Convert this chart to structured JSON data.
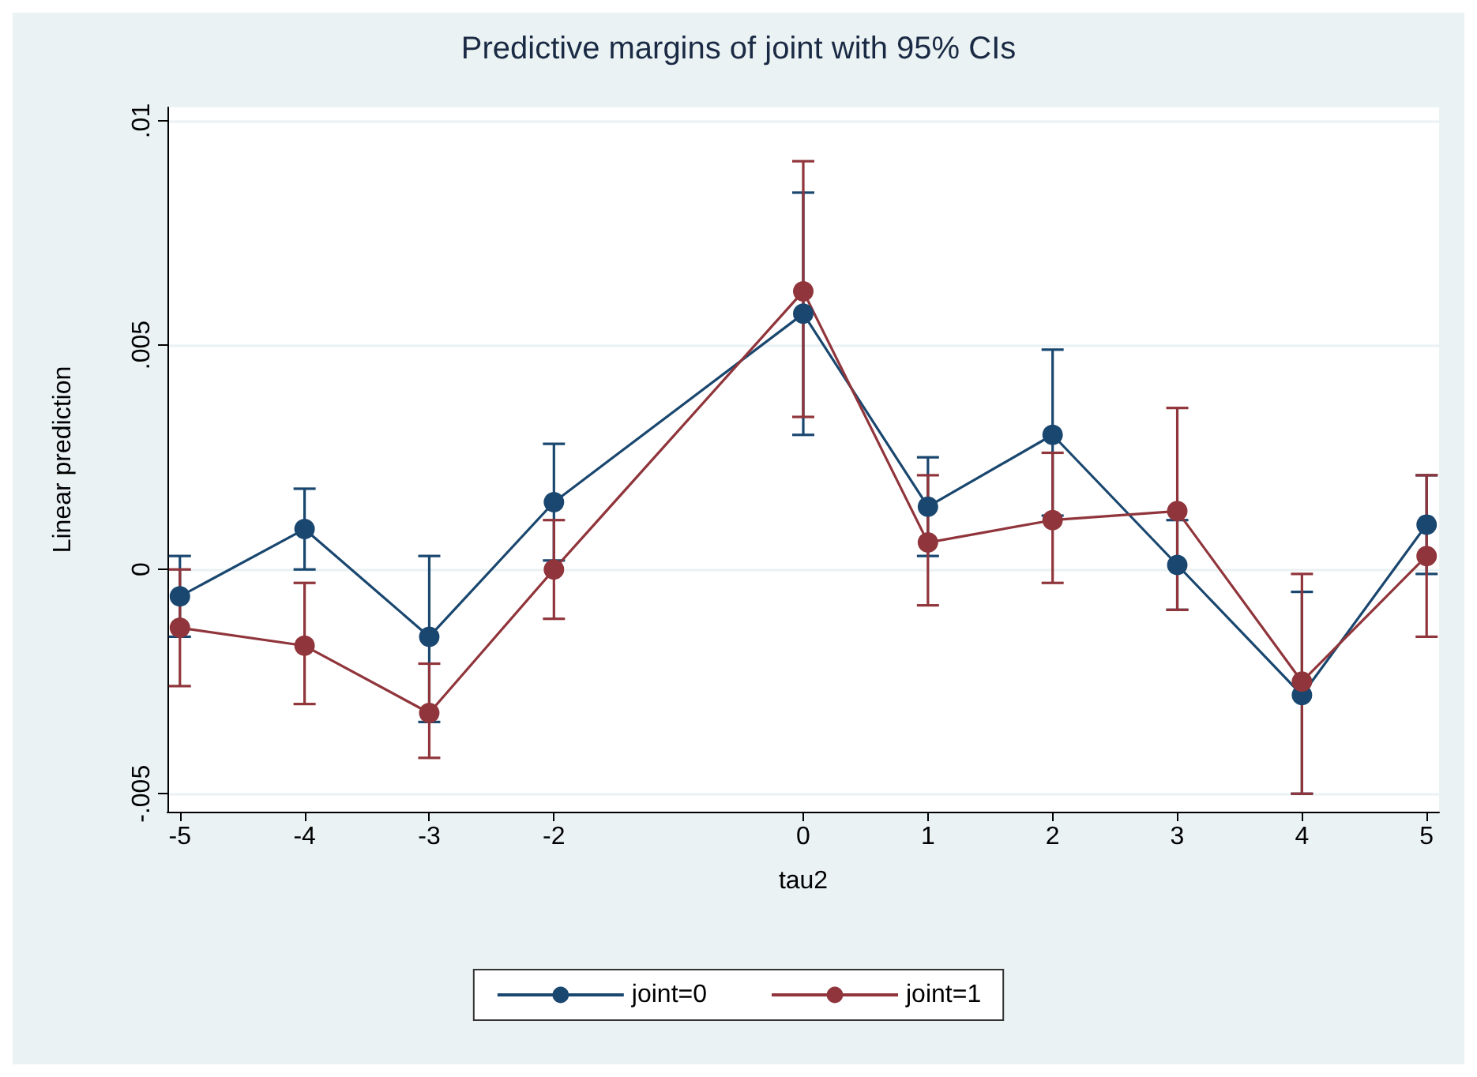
{
  "chart_data": {
    "type": "line",
    "title": "Predictive margins of joint with 95% CIs",
    "xlabel": "tau2",
    "ylabel": "Linear prediction",
    "x": [
      -5,
      -4,
      -3,
      -2,
      0,
      1,
      2,
      3,
      4,
      5
    ],
    "series": [
      {
        "name": "joint=0",
        "color": "#1a476f",
        "values": [
          -0.0006,
          0.0009,
          -0.0015,
          0.0015,
          0.0057,
          0.0014,
          0.003,
          0.0001,
          -0.0028,
          0.001
        ],
        "errors": [
          [
            -0.0015,
            0.0003
          ],
          [
            0.0,
            0.0018
          ],
          [
            -0.0034,
            0.0003
          ],
          [
            0.0002,
            0.0028
          ],
          [
            0.003,
            0.0084
          ],
          [
            0.0003,
            0.0025
          ],
          [
            0.0012,
            0.0049
          ],
          [
            -0.0009,
            0.0011
          ],
          [
            -0.005,
            -0.0005
          ],
          [
            -0.0001,
            0.0021
          ]
        ]
      },
      {
        "name": "joint=1",
        "color": "#90353b",
        "values": [
          -0.0013,
          -0.0017,
          -0.0032,
          0.0,
          0.0062,
          0.0006,
          0.0011,
          0.0013,
          -0.0025,
          0.0003
        ],
        "errors": [
          [
            -0.0026,
            0.0
          ],
          [
            -0.003,
            -0.0003
          ],
          [
            -0.0042,
            -0.0021
          ],
          [
            -0.0011,
            0.0011
          ],
          [
            0.0034,
            0.0091
          ],
          [
            -0.0008,
            0.0021
          ],
          [
            -0.0003,
            0.0026
          ],
          [
            -0.0009,
            0.0036
          ],
          [
            -0.005,
            -0.0001
          ],
          [
            -0.0015,
            0.0021
          ]
        ]
      }
    ],
    "xlim": [
      -5.1,
      5.1
    ],
    "xticks": [
      -5,
      -4,
      -3,
      -2,
      0,
      1,
      2,
      3,
      4,
      5
    ],
    "ylim": [
      -0.0054,
      0.0103
    ],
    "yticks": [
      {
        "value": -0.005,
        "label": "-.005"
      },
      {
        "value": 0,
        "label": "0"
      },
      {
        "value": 0.005,
        "label": ".005"
      },
      {
        "value": 0.01,
        "label": ".01"
      }
    ],
    "grid": "y",
    "legend": "bottom",
    "marker": "circle",
    "line_style": "solid"
  }
}
